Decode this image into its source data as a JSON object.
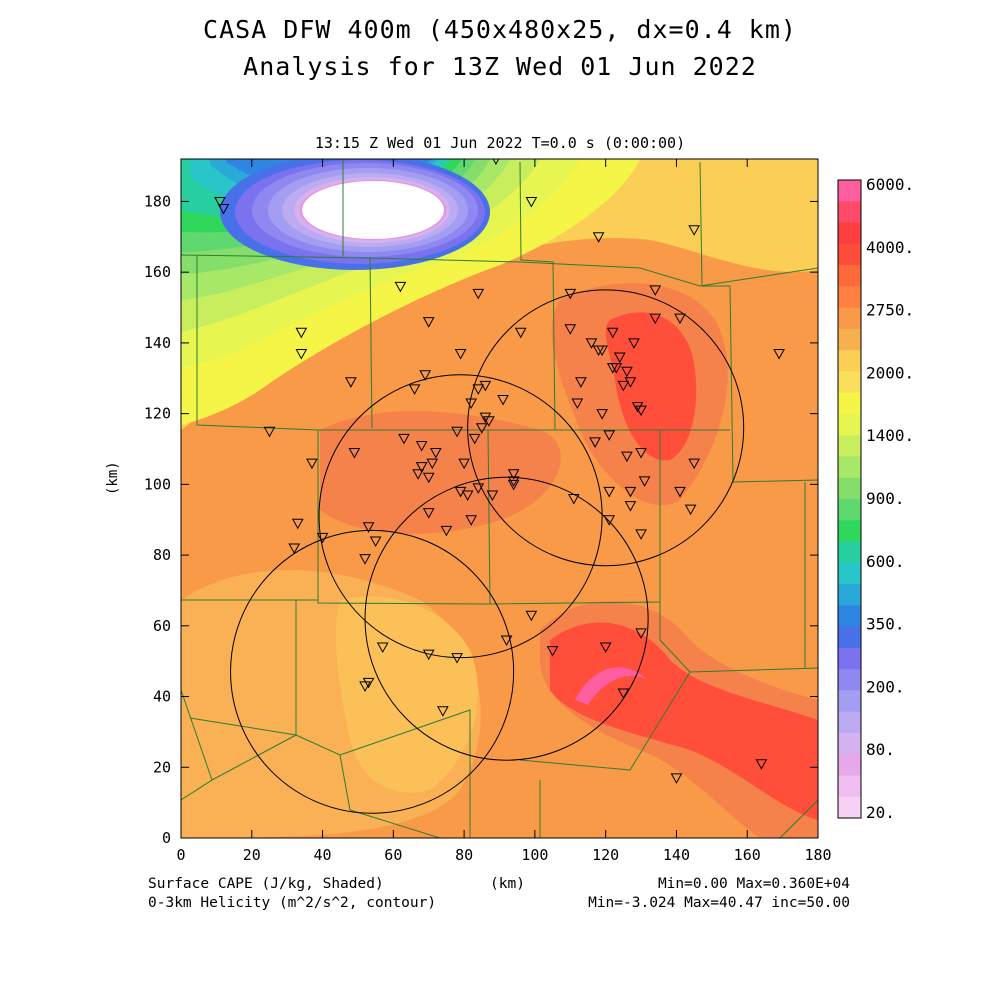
{
  "header": {
    "title_line1": "CASA DFW 400m (450x480x25, dx=0.4 km)",
    "title_line2": "Analysis for 13Z Wed 01 Jun 2022"
  },
  "plot": {
    "valid_time": "13:15 Z Wed 01 Jun 2022    T=0.0 s (0:00:00)",
    "x_label": "(km)",
    "y_label": "(km)",
    "x_ticks": [
      "0",
      "20",
      "40",
      "60",
      "80",
      "100",
      "120",
      "140",
      "160",
      "180"
    ],
    "y_ticks": [
      "0",
      "20",
      "40",
      "60",
      "80",
      "100",
      "120",
      "140",
      "160",
      "180"
    ],
    "x_range_km": [
      0,
      180
    ],
    "y_range_km": [
      0,
      192
    ]
  },
  "colorbar": {
    "labels": [
      "6000.",
      "4000.",
      "2750.",
      "2000.",
      "1400.",
      "900.",
      "600.",
      "350.",
      "200.",
      "80.",
      "20."
    ],
    "colors": [
      "#ff5fa0",
      "#ff4a6a",
      "#ff3f3f",
      "#ff4d3a",
      "#ff6a3c",
      "#ff8040",
      "#fa9a48",
      "#f7b050",
      "#fbcf55",
      "#fae05a",
      "#f5f548",
      "#e6f550",
      "#c8ee5e",
      "#a8e868",
      "#86de6a",
      "#5fd870",
      "#2fd85a",
      "#28cfa0",
      "#28c6c8",
      "#2aa8d8",
      "#2f86e2",
      "#4870e8",
      "#7a72ee",
      "#8f88f0",
      "#a49ef2",
      "#bcaaf2",
      "#d4b2f0",
      "#e6a8e8",
      "#f0bdf0",
      "#f8d2f6"
    ]
  },
  "footer": {
    "left_line1": "Surface CAPE (J/kg, Shaded)",
    "left_line2": "0-3km Helicity (m^2/s^2, contour)",
    "center": "(km)",
    "right_line1": "Min=0.00 Max=0.360E+04",
    "right_line2": "Min=-3.024 Max=40.47 inc=50.00"
  },
  "radars": [
    {
      "name": "radar-ring-1",
      "center_km": [
        120,
        116
      ],
      "radius_km": 39
    },
    {
      "name": "radar-ring-2",
      "center_km": [
        79,
        91
      ],
      "radius_km": 40
    },
    {
      "name": "radar-ring-3",
      "center_km": [
        92,
        62
      ],
      "radius_km": 40
    },
    {
      "name": "radar-ring-4",
      "center_km": [
        54,
        47
      ],
      "radius_km": 40
    }
  ],
  "stations_km": [
    [
      11,
      180
    ],
    [
      12,
      178
    ],
    [
      89,
      192
    ],
    [
      99,
      180
    ],
    [
      118,
      170
    ],
    [
      145,
      172
    ],
    [
      62,
      156
    ],
    [
      84,
      154
    ],
    [
      110,
      154
    ],
    [
      134,
      155
    ],
    [
      34,
      143
    ],
    [
      34,
      137
    ],
    [
      70,
      146
    ],
    [
      96,
      143
    ],
    [
      110,
      144
    ],
    [
      116,
      140
    ],
    [
      118,
      138
    ],
    [
      122,
      143
    ],
    [
      119,
      138
    ],
    [
      122,
      133
    ],
    [
      124,
      136
    ],
    [
      123,
      133
    ],
    [
      128,
      140
    ],
    [
      134,
      147
    ],
    [
      141,
      147
    ],
    [
      169,
      137
    ],
    [
      48,
      129
    ],
    [
      66,
      127
    ],
    [
      69,
      131
    ],
    [
      79,
      137
    ],
    [
      84,
      127
    ],
    [
      86,
      128
    ],
    [
      91,
      124
    ],
    [
      82,
      123
    ],
    [
      86,
      119
    ],
    [
      87,
      118
    ],
    [
      85,
      116
    ],
    [
      80,
      106
    ],
    [
      83,
      113
    ],
    [
      78,
      115
    ],
    [
      113,
      129
    ],
    [
      112,
      123
    ],
    [
      119,
      120
    ],
    [
      125,
      128
    ],
    [
      127,
      129
    ],
    [
      126,
      132
    ],
    [
      129,
      122
    ],
    [
      130,
      121
    ],
    [
      37,
      106
    ],
    [
      25,
      115
    ],
    [
      49,
      109
    ],
    [
      63,
      113
    ],
    [
      68,
      105
    ],
    [
      67,
      103
    ],
    [
      70,
      102
    ],
    [
      71,
      106
    ],
    [
      68,
      111
    ],
    [
      72,
      109
    ],
    [
      117,
      112
    ],
    [
      121,
      114
    ],
    [
      126,
      108
    ],
    [
      130,
      109
    ],
    [
      33,
      89
    ],
    [
      32,
      82
    ],
    [
      40,
      85
    ],
    [
      53,
      88
    ],
    [
      55,
      84
    ],
    [
      52,
      79
    ],
    [
      70,
      92
    ],
    [
      79,
      98
    ],
    [
      81,
      97
    ],
    [
      84,
      99
    ],
    [
      88,
      97
    ],
    [
      94,
      103
    ],
    [
      94,
      101
    ],
    [
      94,
      100
    ],
    [
      111,
      96
    ],
    [
      121,
      98
    ],
    [
      131,
      101
    ],
    [
      127,
      98
    ],
    [
      141,
      98
    ],
    [
      145,
      106
    ],
    [
      144,
      93
    ],
    [
      127,
      94
    ],
    [
      121,
      90
    ],
    [
      130,
      86
    ],
    [
      75,
      87
    ],
    [
      82,
      90
    ],
    [
      99,
      63
    ],
    [
      57,
      54
    ],
    [
      70,
      52
    ],
    [
      78,
      51
    ],
    [
      92,
      56
    ],
    [
      105,
      53
    ],
    [
      120,
      54
    ],
    [
      130,
      58
    ],
    [
      125,
      41
    ],
    [
      53,
      44
    ],
    [
      52,
      43
    ],
    [
      74,
      36
    ],
    [
      140,
      17
    ],
    [
      164,
      21
    ]
  ]
}
